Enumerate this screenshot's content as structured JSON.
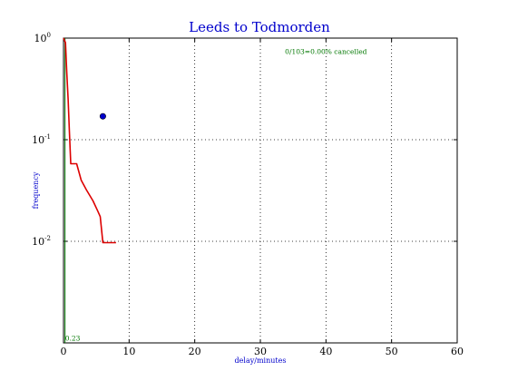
{
  "chart_data": {
    "type": "line",
    "title": "Leeds to Todmorden",
    "xlabel": "delay/minutes",
    "ylabel": "frequency",
    "xlim": [
      0,
      60
    ],
    "ylim": [
      0.001,
      1
    ],
    "yscale": "log",
    "grid": true,
    "x_ticks": [
      0,
      10,
      20,
      30,
      40,
      50,
      60
    ],
    "y_ticks": [
      {
        "value": 1,
        "base": "10",
        "exp": "0"
      },
      {
        "value": 0.1,
        "base": "10",
        "exp": "-1"
      },
      {
        "value": 0.01,
        "base": "10",
        "exp": "-2"
      }
    ],
    "series": [
      {
        "style": "line",
        "color": "#dd0000",
        "x": [
          0,
          0.3,
          0.5,
          0.7,
          0.9,
          1.1,
          2,
          2.7,
          3.5,
          4.5,
          5.2,
          5.6,
          6,
          7,
          8
        ],
        "y": [
          1,
          0.9,
          0.46,
          0.25,
          0.12,
          0.058,
          0.058,
          0.04,
          0.032,
          0.025,
          0.02,
          0.0175,
          0.0097,
          0.0097,
          0.0097
        ]
      },
      {
        "style": "marker",
        "color": "#0000cc",
        "x": [
          6
        ],
        "y": [
          0.17
        ]
      }
    ],
    "annotations": [
      {
        "text": "0/103=0.00% cancelled",
        "x": 40,
        "y": 0.7,
        "color": "#007700"
      },
      {
        "text": "0.23",
        "x": 0.1,
        "y": 0.00105,
        "color": "#007700"
      }
    ],
    "reference_line": {
      "x": 0.23,
      "color": "#007700"
    }
  }
}
